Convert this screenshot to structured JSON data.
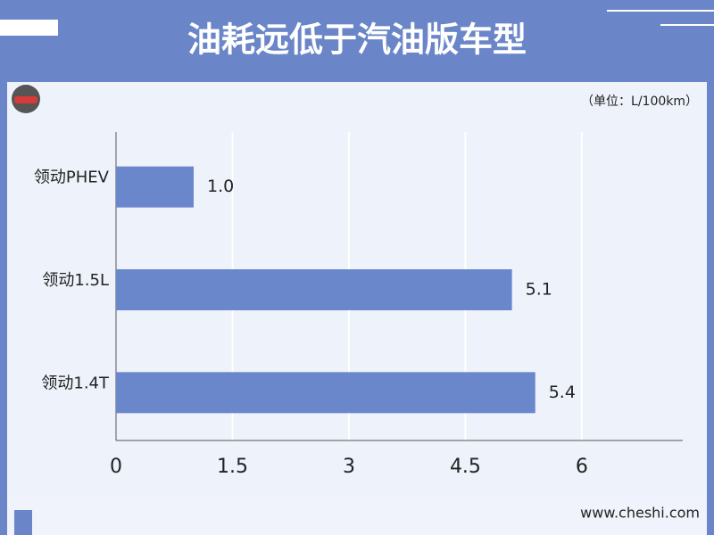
{
  "chart_data": {
    "type": "barh",
    "title": "油耗远低于汽油版车型",
    "unit_note": "（单位：L/100km）",
    "categories": [
      "领动PHEV",
      "领动1.5L",
      "领动1.4T"
    ],
    "values": [
      1.0,
      5.1,
      5.4
    ],
    "value_labels": [
      "1.0",
      "5.1",
      "5.4"
    ],
    "color": "#6a87cc",
    "xlim": [
      0,
      7.3
    ],
    "xticks": [
      0,
      1.5,
      3,
      4.5,
      6
    ],
    "grid": true,
    "watermark": "www.cheshi.com"
  }
}
